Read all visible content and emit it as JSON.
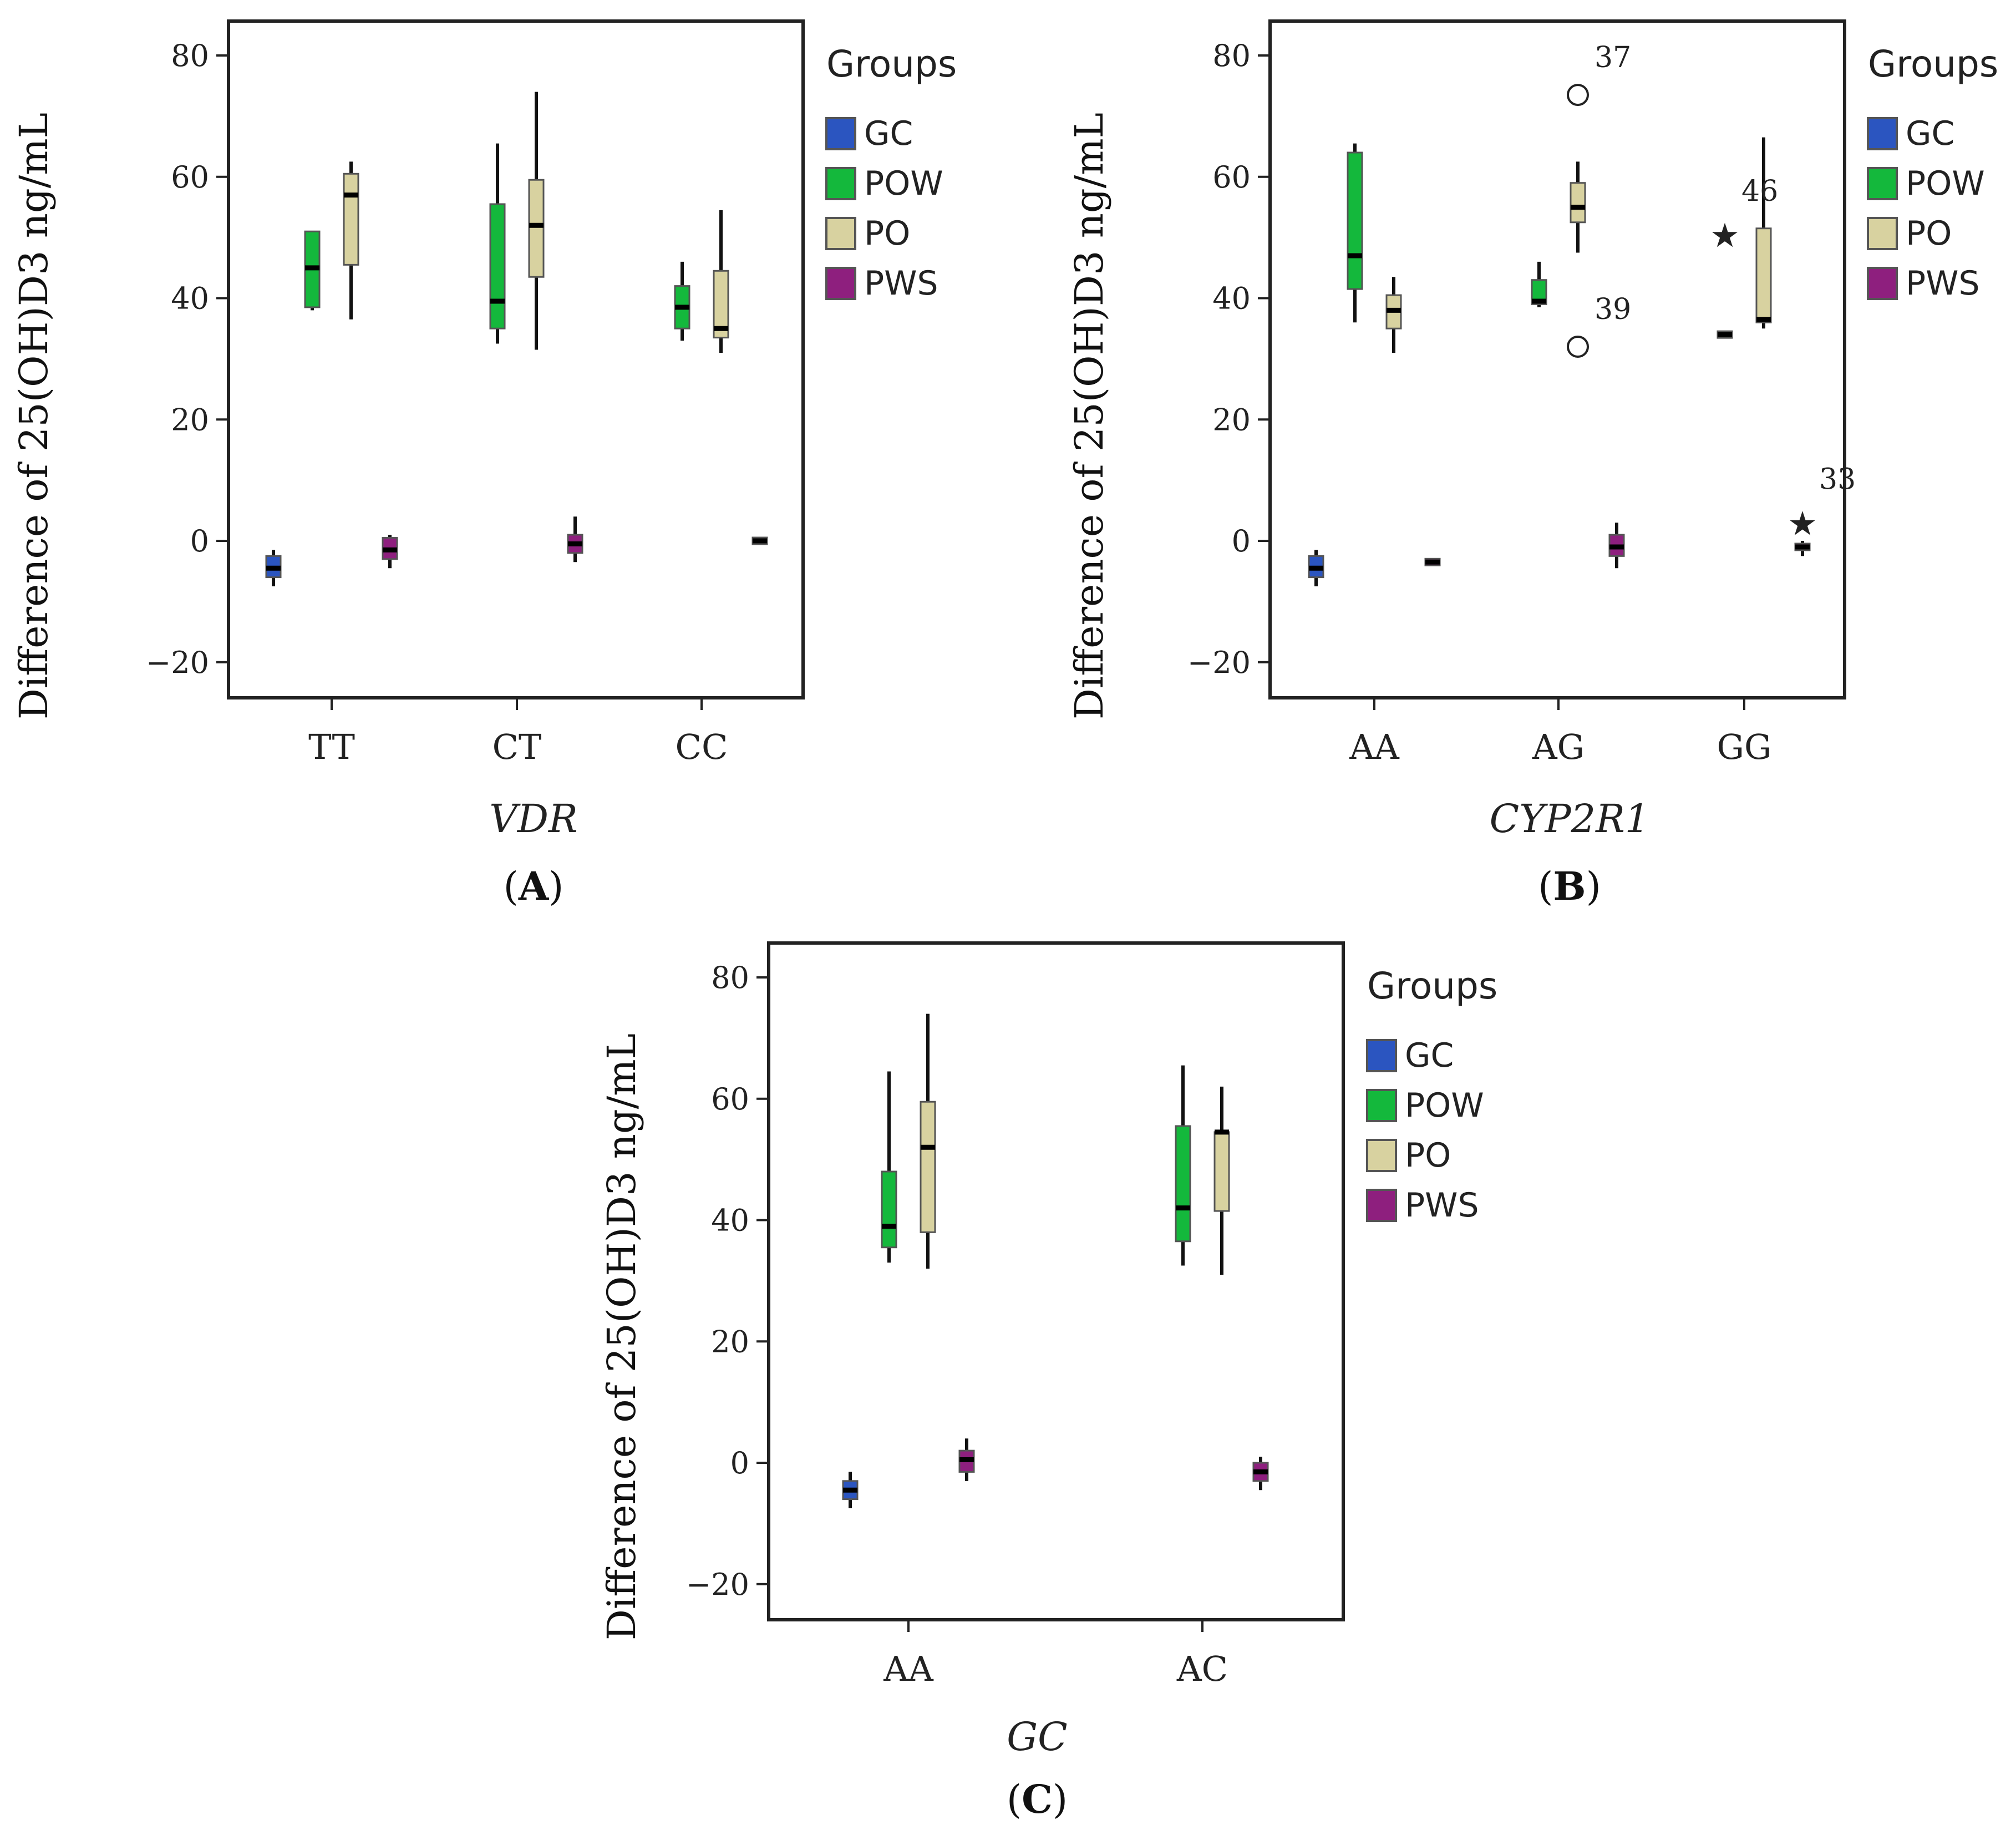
{
  "figure": {
    "legend": {
      "title": "Groups",
      "entries": [
        {
          "name": "GC",
          "color": "#2b55c0"
        },
        {
          "name": "POW",
          "color": "#14b83c"
        },
        {
          "name": "PO",
          "color": "#d8d2a0"
        },
        {
          "name": "PWS",
          "color": "#8e1f7e"
        }
      ]
    }
  },
  "chart_data": [
    {
      "type": "box",
      "panel_label": "(A)",
      "panel_letter": "A",
      "gene": "VDR",
      "ylabel": "Difference of 25(OH)D3 ng/mL",
      "ylim": [
        -25,
        84
      ],
      "yticks": [
        80,
        60,
        40,
        20,
        0,
        -20
      ],
      "ytick_labels": [
        "80",
        "60",
        "40",
        "20",
        "0",
        "−20"
      ],
      "categories": [
        "TT",
        "CT",
        "CC"
      ],
      "boxes": [
        {
          "cat": "TT",
          "group": "GC",
          "min": -7.5,
          "q1": -6,
          "median": -4.5,
          "q3": -2.5,
          "max": -1.5
        },
        {
          "cat": "TT",
          "group": "POW",
          "min": 38,
          "q1": 38.5,
          "median": 45,
          "q3": 51,
          "max": 51
        },
        {
          "cat": "TT",
          "group": "PO",
          "min": 36.5,
          "q1": 45.5,
          "median": 57,
          "q3": 60.5,
          "max": 62.5
        },
        {
          "cat": "TT",
          "group": "PWS",
          "min": -4.5,
          "q1": -3,
          "median": -1.5,
          "q3": 0.5,
          "max": 1
        },
        {
          "cat": "CT",
          "group": "POW",
          "min": 32.5,
          "q1": 35,
          "median": 39.5,
          "q3": 55.5,
          "max": 65.5
        },
        {
          "cat": "CT",
          "group": "PO",
          "min": 31.5,
          "q1": 43.5,
          "median": 52,
          "q3": 59.5,
          "max": 74
        },
        {
          "cat": "CT",
          "group": "PWS",
          "min": -3.5,
          "q1": -2,
          "median": -0.5,
          "q3": 1,
          "max": 4
        },
        {
          "cat": "CC",
          "group": "POW",
          "min": 33,
          "q1": 35,
          "median": 38.5,
          "q3": 42,
          "max": 46
        },
        {
          "cat": "CC",
          "group": "PO",
          "min": 31,
          "q1": 33.5,
          "median": 35,
          "q3": 44.5,
          "max": 54.5
        },
        {
          "cat": "CC",
          "group": "PWS",
          "min": 0,
          "q1": 0,
          "median": 0,
          "q3": 0,
          "max": 0
        }
      ],
      "outliers": []
    },
    {
      "type": "box",
      "panel_label": "(B)",
      "panel_letter": "B",
      "gene": "CYP2R1",
      "ylabel": "Difference of 25(OH)D3 ng/mL",
      "ylim": [
        -25,
        84
      ],
      "yticks": [
        80,
        60,
        40,
        20,
        0,
        -20
      ],
      "ytick_labels": [
        "80",
        "60",
        "40",
        "20",
        "0",
        "−20"
      ],
      "categories": [
        "AA",
        "AG",
        "GG"
      ],
      "boxes": [
        {
          "cat": "AA",
          "group": "GC",
          "min": -7.5,
          "q1": -6,
          "median": -4.5,
          "q3": -2.5,
          "max": -1.5
        },
        {
          "cat": "AA",
          "group": "POW",
          "min": 36,
          "q1": 41.5,
          "median": 47,
          "q3": 64,
          "max": 65.5
        },
        {
          "cat": "AA",
          "group": "PO",
          "min": 31,
          "q1": 35,
          "median": 38,
          "q3": 40.5,
          "max": 43.5
        },
        {
          "cat": "AA",
          "group": "PWS",
          "min": -3.5,
          "q1": -3.5,
          "median": -3.5,
          "q3": -3.5,
          "max": -3.5
        },
        {
          "cat": "AG",
          "group": "POW",
          "min": 38.5,
          "q1": 39,
          "median": 39.5,
          "q3": 43,
          "max": 46
        },
        {
          "cat": "AG",
          "group": "PO",
          "min": 47.5,
          "q1": 52.5,
          "median": 55,
          "q3": 59,
          "max": 62.5
        },
        {
          "cat": "AG",
          "group": "PWS",
          "min": -4.5,
          "q1": -2.5,
          "median": -1,
          "q3": 1,
          "max": 3
        },
        {
          "cat": "GG",
          "group": "POW",
          "min": 33.5,
          "q1": 33.5,
          "median": 34,
          "q3": 34.5,
          "max": 34.5
        },
        {
          "cat": "GG",
          "group": "PO",
          "min": 35,
          "q1": 36,
          "median": 36.5,
          "q3": 51.5,
          "max": 66.5
        },
        {
          "cat": "GG",
          "group": "PWS",
          "min": -2.5,
          "q1": -1.5,
          "median": -1,
          "q3": -0.5,
          "max": 0
        }
      ],
      "outliers": [
        {
          "cat": "AG",
          "group": "PO",
          "value": 73.5,
          "marker": "circle",
          "label": "37"
        },
        {
          "cat": "AG",
          "group": "PO",
          "value": 32,
          "marker": "circle",
          "label": "39"
        },
        {
          "cat": "GG",
          "group": "POW",
          "value": 51,
          "marker": "star",
          "label": "46"
        },
        {
          "cat": "GG",
          "group": "PWS",
          "value": 3.5,
          "marker": "star",
          "label": "33"
        }
      ]
    },
    {
      "type": "box",
      "panel_label": "(C)",
      "panel_letter": "C",
      "gene": "GC",
      "ylabel": "Difference of 25(OH)D3 ng/mL",
      "ylim": [
        -25,
        84
      ],
      "yticks": [
        80,
        60,
        40,
        20,
        0,
        -20
      ],
      "ytick_labels": [
        "80",
        "60",
        "40",
        "20",
        "0",
        "−20"
      ],
      "categories": [
        "AA",
        "AC"
      ],
      "boxes": [
        {
          "cat": "AA",
          "group": "GC",
          "min": -7.5,
          "q1": -6,
          "median": -4.5,
          "q3": -3,
          "max": -1.5
        },
        {
          "cat": "AA",
          "group": "POW",
          "min": 33,
          "q1": 35.5,
          "median": 39,
          "q3": 48,
          "max": 64.5
        },
        {
          "cat": "AA",
          "group": "PO",
          "min": 32,
          "q1": 38,
          "median": 52,
          "q3": 59.5,
          "max": 74
        },
        {
          "cat": "AA",
          "group": "PWS",
          "min": -3,
          "q1": -1.5,
          "median": 0.5,
          "q3": 2,
          "max": 4
        },
        {
          "cat": "AC",
          "group": "POW",
          "min": 32.5,
          "q1": 36.5,
          "median": 42,
          "q3": 55.5,
          "max": 65.5
        },
        {
          "cat": "AC",
          "group": "PO",
          "min": 31,
          "q1": 41.5,
          "median": 54.5,
          "q3": 54.5,
          "max": 62
        },
        {
          "cat": "AC",
          "group": "PWS",
          "min": -4.5,
          "q1": -3,
          "median": -1.5,
          "q3": 0,
          "max": 1
        }
      ],
      "outliers": []
    }
  ]
}
